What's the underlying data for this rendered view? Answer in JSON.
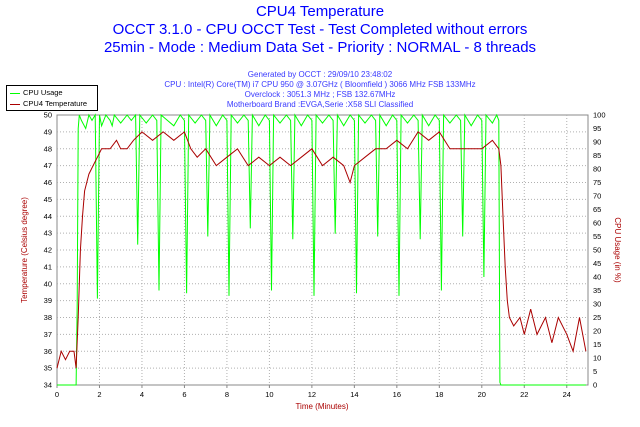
{
  "chart_data": {
    "type": "line",
    "title": "CPU4 Temperature",
    "subtitle_lines": [
      "OCCT 3.1.0 - CPU OCCT Test - Test Completed without errors",
      "25min - Mode : Medium Data Set - Priority : NORMAL - 8 threads"
    ],
    "info_lines": [
      "Generated by OCCT : 29/09/10 23:48:02",
      "CPU : Intel(R) Core(TM) i7 CPU 950 @ 3.07GHz ( Bloomfield ) 3066 MHz FSB 133MHz",
      "Overclock : 3051.3 MHz ; FSB 132.67MHz",
      "Motherboard Brand :EVGA,Serie :X58 SLI Classified"
    ],
    "xlabel": "Time (Minutes)",
    "ylabel": "Temperature (Celsius degree)",
    "y2label": "CPU Usage (in %)",
    "xlim": [
      0,
      25
    ],
    "ylim": [
      34,
      50
    ],
    "y2lim": [
      0,
      100
    ],
    "xticks": [
      "0",
      "2",
      "4",
      "6",
      "8",
      "10",
      "12",
      "14",
      "16",
      "18",
      "20",
      "22",
      "24"
    ],
    "yticks": [
      "34",
      "35",
      "36",
      "37",
      "38",
      "39",
      "40",
      "41",
      "42",
      "43",
      "44",
      "45",
      "46",
      "47",
      "48",
      "49",
      "50"
    ],
    "y2ticks": [
      "0",
      "5",
      "10",
      "15",
      "20",
      "25",
      "30",
      "35",
      "40",
      "45",
      "50",
      "55",
      "60",
      "65",
      "70",
      "75",
      "80",
      "85",
      "90",
      "95",
      "100"
    ],
    "grid": true,
    "legend_position": "top-left",
    "series": [
      {
        "name": "CPU Usage",
        "axis": "right",
        "color": "#00ff00",
        "x": [
          0,
          0.9,
          0.95,
          1.0,
          1.05,
          1.15,
          1.35,
          1.5,
          1.65,
          1.8,
          1.9,
          2.0,
          2.1,
          2.3,
          2.5,
          2.6,
          2.7,
          3.0,
          3.3,
          3.5,
          3.7,
          3.8,
          3.9,
          4.2,
          4.5,
          4.7,
          4.8,
          4.9,
          5.2,
          5.5,
          5.8,
          6.0,
          6.1,
          6.2,
          6.5,
          6.8,
          7.0,
          7.1,
          7.2,
          7.5,
          7.8,
          8.0,
          8.1,
          8.2,
          8.5,
          8.8,
          9.0,
          9.1,
          9.2,
          9.5,
          9.8,
          10.0,
          10.1,
          10.2,
          10.5,
          10.8,
          11.0,
          11.1,
          11.2,
          11.5,
          11.8,
          12.0,
          12.1,
          12.2,
          12.5,
          12.8,
          13.0,
          13.1,
          13.2,
          13.5,
          13.8,
          14.0,
          14.1,
          14.2,
          14.5,
          14.8,
          15.0,
          15.1,
          15.2,
          15.5,
          15.8,
          16.0,
          16.1,
          16.2,
          16.5,
          16.8,
          17.0,
          17.1,
          17.2,
          17.5,
          17.8,
          18.0,
          18.1,
          18.2,
          18.5,
          18.8,
          19.0,
          19.1,
          19.2,
          19.5,
          19.8,
          20.0,
          20.1,
          20.2,
          20.5,
          20.7,
          20.8,
          20.85,
          20.9,
          21.0,
          21.5,
          22,
          23,
          24,
          24.9
        ],
        "values": [
          0,
          0,
          30,
          95,
          100,
          98,
          95,
          100,
          98,
          100,
          32,
          100,
          96,
          100,
          98,
          96,
          100,
          97,
          100,
          98,
          100,
          52,
          100,
          97,
          100,
          98,
          35,
          100,
          98,
          96,
          100,
          98,
          34,
          100,
          97,
          100,
          98,
          55,
          100,
          96,
          100,
          98,
          33,
          100,
          97,
          100,
          98,
          58,
          100,
          96,
          100,
          98,
          35,
          100,
          97,
          100,
          98,
          54,
          100,
          96,
          100,
          98,
          33,
          100,
          97,
          100,
          98,
          56,
          100,
          96,
          100,
          98,
          34,
          100,
          97,
          100,
          98,
          55,
          100,
          96,
          100,
          98,
          33,
          100,
          97,
          100,
          98,
          54,
          100,
          96,
          100,
          98,
          35,
          100,
          97,
          100,
          98,
          55,
          100,
          96,
          100,
          98,
          40,
          100,
          97,
          100,
          98,
          1,
          0,
          0,
          0,
          0,
          0,
          0,
          0
        ]
      },
      {
        "name": "CPU4 Temperature",
        "axis": "left",
        "color": "#aa0000",
        "x": [
          0,
          0.2,
          0.4,
          0.6,
          0.8,
          0.9,
          1.0,
          1.05,
          1.1,
          1.2,
          1.3,
          1.5,
          1.7,
          1.9,
          2.1,
          2.3,
          2.5,
          2.8,
          3.0,
          3.3,
          3.6,
          4.0,
          4.5,
          5.0,
          5.5,
          6.0,
          6.3,
          6.6,
          7.0,
          7.5,
          8.0,
          8.5,
          9.0,
          9.5,
          10.0,
          10.5,
          11.0,
          11.5,
          12.0,
          12.5,
          13.0,
          13.5,
          13.8,
          14.0,
          14.5,
          15.0,
          15.5,
          16.0,
          16.5,
          17.0,
          17.5,
          18.0,
          18.5,
          19.0,
          19.5,
          20.0,
          20.5,
          20.8,
          20.9,
          21.0,
          21.1,
          21.2,
          21.3,
          21.5,
          21.8,
          22.0,
          22.3,
          22.6,
          23.0,
          23.3,
          23.6,
          24.0,
          24.3,
          24.6,
          24.9
        ],
        "values": [
          35,
          36,
          35.5,
          36,
          36,
          35,
          38,
          40,
          42,
          44,
          45.5,
          46.5,
          47,
          47.5,
          48,
          48,
          48,
          48.5,
          48,
          48,
          48.5,
          49,
          48.5,
          49,
          48.5,
          49,
          48,
          47.5,
          48,
          47,
          47.5,
          48,
          47,
          47.5,
          47,
          47.5,
          47,
          47.5,
          48,
          47,
          47.5,
          47,
          46,
          47,
          47.5,
          48,
          48,
          48.5,
          48,
          49,
          48.5,
          49,
          48,
          48,
          48,
          48,
          48.5,
          48,
          47,
          44,
          41,
          39,
          38,
          37.5,
          38,
          37,
          38.5,
          37,
          38,
          36.5,
          38,
          37,
          36,
          38,
          36
        ]
      }
    ]
  }
}
